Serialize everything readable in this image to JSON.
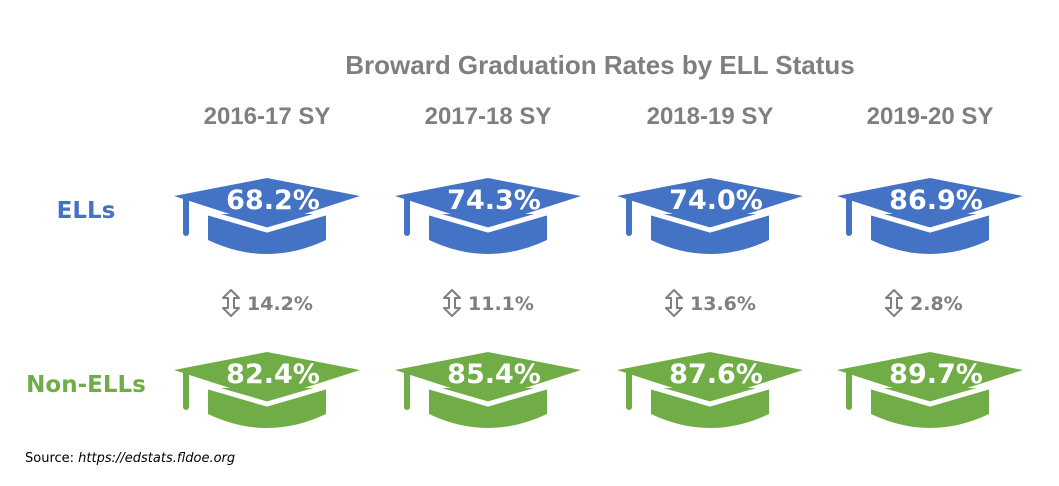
{
  "chart_data": {
    "type": "pictograph",
    "title": "Broward Graduation Rates by ELL Status",
    "categories": [
      "2016-17 SY",
      "2017-18 SY",
      "2018-19 SY",
      "2019-20 SY"
    ],
    "series": [
      {
        "name": "ELLs",
        "color": "#4472c4",
        "values": [
          68.2,
          74.3,
          74.0,
          86.9
        ],
        "labels": [
          "68.2%",
          "74.3%",
          "74.0%",
          "86.9%"
        ]
      },
      {
        "name": "Non-ELLs",
        "color": "#70ad47",
        "values": [
          82.4,
          85.4,
          87.6,
          89.7
        ],
        "labels": [
          "82.4%",
          "85.4%",
          "87.6%",
          "89.7%"
        ]
      }
    ],
    "gaps": {
      "values": [
        14.2,
        11.1,
        13.6,
        2.8
      ],
      "labels": [
        "14.2%",
        "11.1%",
        "13.6%",
        "2.8%"
      ],
      "icon": "up-down-arrow-icon",
      "color": "#7f7f7f"
    },
    "mark_icon": "graduation-cap-icon"
  },
  "source": {
    "label": "Source:",
    "url": "https://edstats.fldoe.org"
  }
}
